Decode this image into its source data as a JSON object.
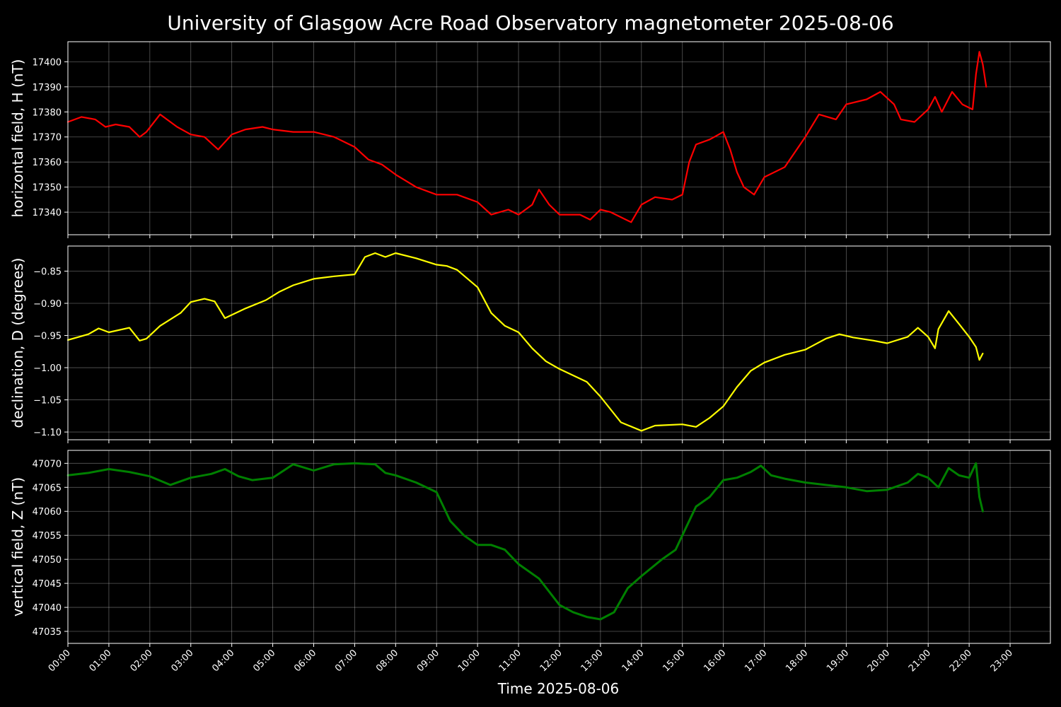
{
  "figure": {
    "title": "University of Glasgow Acre Road Observatory magnetometer 2025-08-06",
    "background": "#000000",
    "foreground": "#ffffff"
  },
  "chart_data": [
    {
      "type": "line",
      "title": "",
      "xlabel": "",
      "ylabel": "horizontal field, H (nT)",
      "xlim": [
        "00:00",
        "23:59"
      ],
      "ylim": [
        17331,
        17408
      ],
      "yticks": [
        17340,
        17350,
        17360,
        17370,
        17380,
        17390,
        17400
      ],
      "grid": true,
      "color": "#ff0000",
      "series": [
        {
          "x": [
            "00:00",
            "00:20",
            "00:40",
            "00:55",
            "01:10",
            "01:30",
            "01:45",
            "01:55",
            "02:15",
            "02:40",
            "03:00",
            "03:20",
            "03:40",
            "04:00",
            "04:20",
            "04:45",
            "05:00",
            "05:30",
            "06:00",
            "06:30",
            "07:00",
            "07:20",
            "07:40",
            "08:00",
            "08:30",
            "09:00",
            "09:30",
            "10:00",
            "10:20",
            "10:45",
            "11:00",
            "11:20",
            "11:30",
            "11:45",
            "12:00",
            "12:30",
            "12:45",
            "13:00",
            "13:15",
            "13:30",
            "13:45",
            "14:00",
            "14:20",
            "14:45",
            "15:00",
            "15:10",
            "15:20",
            "15:40",
            "16:00",
            "16:10",
            "16:20",
            "16:30",
            "16:45",
            "17:00",
            "17:30",
            "18:00",
            "18:20",
            "18:45",
            "19:00",
            "19:30",
            "19:50",
            "20:10",
            "20:20",
            "20:40",
            "21:00",
            "21:10",
            "21:20",
            "21:35",
            "21:50",
            "22:05",
            "22:10",
            "22:15",
            "22:20",
            "22:25"
          ],
          "y": [
            17376,
            17378,
            17377,
            17374,
            17375,
            17374,
            17370,
            17372,
            17379,
            17374,
            17371,
            17370,
            17365,
            17371,
            17373,
            17374,
            17373,
            17372,
            17372,
            17370,
            17366,
            17361,
            17359,
            17355,
            17350,
            17347,
            17347,
            17344,
            17339,
            17341,
            17339,
            17343,
            17349,
            17343,
            17339,
            17339,
            17337,
            17341,
            17340,
            17338,
            17336,
            17343,
            17346,
            17345,
            17347,
            17360,
            17367,
            17369,
            17372,
            17365,
            17356,
            17350,
            17347,
            17354,
            17358,
            17370,
            17379,
            17377,
            17383,
            17385,
            17388,
            17383,
            17377,
            17376,
            17381,
            17386,
            17380,
            17388,
            17383,
            17381,
            17395,
            17404,
            17399,
            17390
          ]
        }
      ]
    },
    {
      "type": "line",
      "title": "",
      "xlabel": "",
      "ylabel": "declination, D (degrees)",
      "xlim": [
        "00:00",
        "23:59"
      ],
      "ylim": [
        -1.112,
        -0.811
      ],
      "yticks": [
        -1.1,
        -1.05,
        -1.0,
        -0.95,
        -0.9,
        -0.85
      ],
      "yticklabels": [
        "−1.10",
        "−1.05",
        "−1.00",
        "−0.95",
        "−0.90",
        "−0.85"
      ],
      "grid": true,
      "color": "#ffff00",
      "series": [
        {
          "x": [
            "00:00",
            "00:30",
            "00:45",
            "01:00",
            "01:30",
            "01:45",
            "01:55",
            "02:15",
            "02:45",
            "03:00",
            "03:20",
            "03:35",
            "03:50",
            "04:20",
            "04:50",
            "05:10",
            "05:30",
            "06:00",
            "06:30",
            "07:00",
            "07:15",
            "07:30",
            "07:45",
            "08:00",
            "08:30",
            "09:00",
            "09:15",
            "09:30",
            "10:00",
            "10:20",
            "10:40",
            "11:00",
            "11:20",
            "11:40",
            "12:00",
            "12:20",
            "12:40",
            "13:00",
            "13:30",
            "14:00",
            "14:20",
            "15:00",
            "15:20",
            "15:40",
            "16:00",
            "16:20",
            "16:40",
            "17:00",
            "17:30",
            "18:00",
            "18:30",
            "18:50",
            "19:10",
            "19:40",
            "20:00",
            "20:30",
            "20:45",
            "21:00",
            "21:10",
            "21:15",
            "21:30",
            "21:45",
            "22:00",
            "22:10",
            "22:15",
            "22:20"
          ],
          "y": [
            -0.957,
            -0.948,
            -0.939,
            -0.945,
            -0.938,
            -0.958,
            -0.955,
            -0.935,
            -0.915,
            -0.898,
            -0.893,
            -0.897,
            -0.923,
            -0.908,
            -0.895,
            -0.882,
            -0.872,
            -0.862,
            -0.858,
            -0.855,
            -0.828,
            -0.822,
            -0.828,
            -0.822,
            -0.83,
            -0.84,
            -0.842,
            -0.848,
            -0.875,
            -0.915,
            -0.935,
            -0.945,
            -0.97,
            -0.99,
            -1.002,
            -1.012,
            -1.022,
            -1.045,
            -1.085,
            -1.098,
            -1.09,
            -1.088,
            -1.092,
            -1.078,
            -1.06,
            -1.03,
            -1.005,
            -0.992,
            -0.98,
            -0.972,
            -0.955,
            -0.948,
            -0.953,
            -0.958,
            -0.962,
            -0.952,
            -0.938,
            -0.952,
            -0.97,
            -0.94,
            -0.912,
            -0.932,
            -0.952,
            -0.968,
            -0.988,
            -0.978
          ]
        }
      ]
    },
    {
      "type": "line",
      "title": "",
      "xlabel": "Time 2025-08-06",
      "ylabel": "vertical field, Z (nT)",
      "xlim": [
        "00:00",
        "23:59"
      ],
      "xticks": [
        "00:00",
        "01:00",
        "02:00",
        "03:00",
        "04:00",
        "05:00",
        "06:00",
        "07:00",
        "08:00",
        "09:00",
        "10:00",
        "11:00",
        "12:00",
        "13:00",
        "14:00",
        "15:00",
        "16:00",
        "17:00",
        "18:00",
        "19:00",
        "20:00",
        "21:00",
        "22:00",
        "23:00"
      ],
      "ylim": [
        47032.5,
        47072.7
      ],
      "yticks": [
        47035,
        47040,
        47045,
        47050,
        47055,
        47060,
        47065,
        47070
      ],
      "grid": true,
      "color": "#008000",
      "series": [
        {
          "x": [
            "00:00",
            "00:30",
            "01:00",
            "01:30",
            "02:00",
            "02:30",
            "03:00",
            "03:30",
            "03:50",
            "04:10",
            "04:30",
            "05:00",
            "05:30",
            "06:00",
            "06:30",
            "07:00",
            "07:30",
            "07:45",
            "08:00",
            "08:30",
            "09:00",
            "09:10",
            "09:20",
            "09:40",
            "10:00",
            "10:20",
            "10:40",
            "11:00",
            "11:30",
            "12:00",
            "12:20",
            "12:40",
            "13:00",
            "13:20",
            "13:40",
            "14:00",
            "14:30",
            "14:50",
            "15:00",
            "15:20",
            "15:40",
            "16:00",
            "16:20",
            "16:40",
            "16:55",
            "17:10",
            "17:30",
            "18:00",
            "18:30",
            "19:00",
            "19:30",
            "20:00",
            "20:30",
            "20:45",
            "21:00",
            "21:15",
            "21:30",
            "21:45",
            "22:00",
            "22:10",
            "22:15",
            "22:20"
          ],
          "y": [
            47067.5,
            47068,
            47068.8,
            47068.2,
            47067.3,
            47065.5,
            47067,
            47067.8,
            47068.8,
            47067.3,
            47066.5,
            47067,
            47069.8,
            47068.5,
            47069.8,
            47070,
            47069.8,
            47068,
            47067.5,
            47066,
            47064,
            47061,
            47058,
            47055,
            47053,
            47053,
            47052,
            47049,
            47046,
            47040.5,
            47039,
            47038,
            47037.5,
            47039,
            47044,
            47046.5,
            47050,
            47052,
            47055,
            47061,
            47063,
            47066.5,
            47067,
            47068.2,
            47069.5,
            47067.5,
            47066.8,
            47066,
            47065.5,
            47065,
            47064.2,
            47064.5,
            47066,
            47067.8,
            47067,
            47065,
            47069,
            47067.5,
            47067,
            47070,
            47063,
            47060
          ]
        }
      ]
    }
  ]
}
